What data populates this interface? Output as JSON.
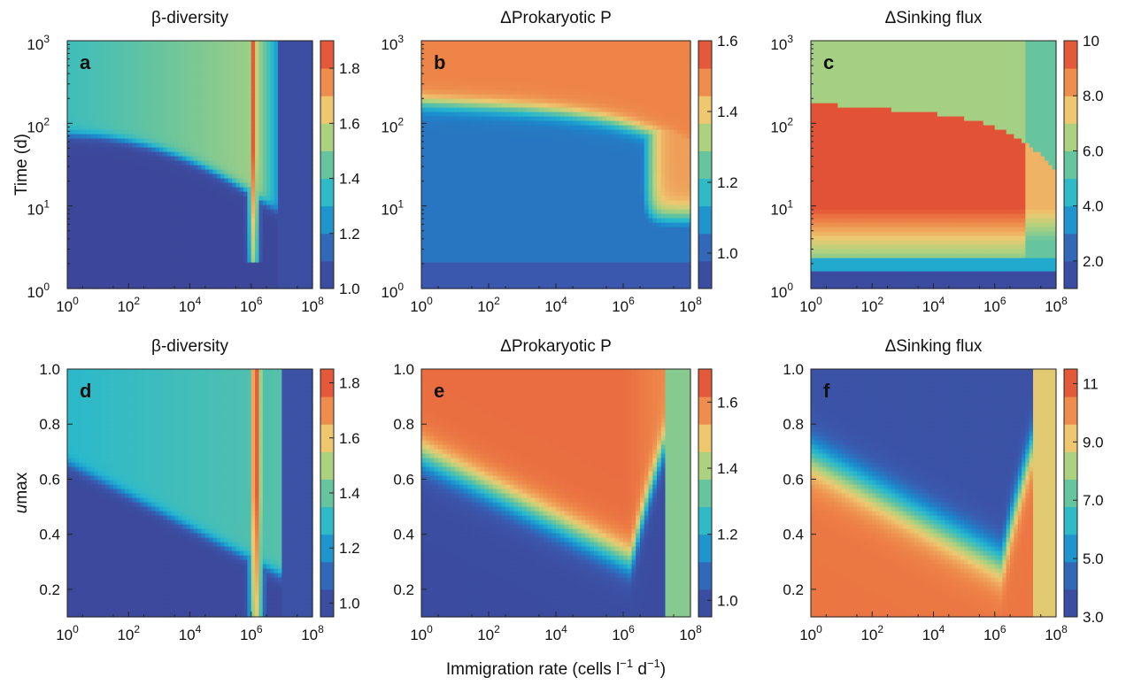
{
  "figure": {
    "shared_xlabel": {
      "pre": "Immigration rate (cells l",
      "mid": " d",
      "post": ")",
      "sup": "−1"
    },
    "row1_ylabel": "Time (d)",
    "row2_ylabel": {
      "u": "u",
      "rest": "max"
    }
  },
  "chart_data": [
    {
      "id": "a",
      "type": "heatmap",
      "title": "β-diversity",
      "letter": "a",
      "x_scale": "log",
      "x_range": [
        1,
        100000000
      ],
      "x_ticks": [
        {
          "b": "10",
          "e": "0"
        },
        {
          "b": "10",
          "e": "2"
        },
        {
          "b": "10",
          "e": "4"
        },
        {
          "b": "10",
          "e": "6"
        },
        {
          "b": "10",
          "e": "8"
        }
      ],
      "y_scale": "log",
      "y_range": [
        1,
        1000
      ],
      "y_ticks": [
        {
          "b": "10",
          "e": "0"
        },
        {
          "b": "10",
          "e": "1"
        },
        {
          "b": "10",
          "e": "2"
        },
        {
          "b": "10",
          "e": "3"
        }
      ],
      "colorbar": {
        "range": [
          1.0,
          1.9
        ],
        "ticks": [
          "1.0",
          "1.2",
          "1.4",
          "1.6",
          "1.8"
        ],
        "tick_values": [
          1.0,
          1.2,
          1.4,
          1.6,
          1.8
        ]
      },
      "regions": [
        {
          "region": "below threshold curve (time < ~150 d decreasing to ~10 d at 10^6)",
          "value": 1.0
        },
        {
          "region": "above threshold, low immigration",
          "value": 1.45
        },
        {
          "region": "ridge at ~10^6 cells l-1 d-1, upper times",
          "value": 1.8
        },
        {
          "region": "immigration > 10^7",
          "value": 1.05
        }
      ]
    },
    {
      "id": "b",
      "type": "heatmap",
      "title": "ΔProkaryotic P",
      "letter": "b",
      "x_scale": "log",
      "x_range": [
        1,
        100000000
      ],
      "x_ticks": [
        {
          "b": "10",
          "e": "0"
        },
        {
          "b": "10",
          "e": "2"
        },
        {
          "b": "10",
          "e": "4"
        },
        {
          "b": "10",
          "e": "6"
        },
        {
          "b": "10",
          "e": "8"
        }
      ],
      "y_scale": "log",
      "y_range": [
        1,
        1000
      ],
      "y_ticks": [
        {
          "b": "10",
          "e": "0"
        },
        {
          "b": "10",
          "e": "1"
        },
        {
          "b": "10",
          "e": "2"
        },
        {
          "b": "10",
          "e": "3"
        }
      ],
      "colorbar": {
        "range": [
          0.9,
          1.6
        ],
        "ticks": [
          "1.0",
          "1.2",
          "1.4",
          "1.6"
        ],
        "tick_values": [
          1.0,
          1.2,
          1.4,
          1.6
        ]
      },
      "regions": [
        {
          "region": "time > ~150 d",
          "value": 1.55
        },
        {
          "region": "time < ~150 d, low immigration",
          "value": 1.08
        },
        {
          "region": "high immigration > 10^7, time > ~10 d",
          "value": 1.5
        },
        {
          "region": "short times, high immigration",
          "value": 1.0
        }
      ]
    },
    {
      "id": "c",
      "type": "heatmap",
      "title": "ΔSinking flux",
      "letter": "c",
      "x_scale": "log",
      "x_range": [
        1,
        100000000
      ],
      "x_ticks": [
        {
          "b": "10",
          "e": "0"
        },
        {
          "b": "10",
          "e": "2"
        },
        {
          "b": "10",
          "e": "4"
        },
        {
          "b": "10",
          "e": "6"
        },
        {
          "b": "10",
          "e": "8"
        }
      ],
      "y_scale": "log",
      "y_range": [
        1,
        1000
      ],
      "y_ticks": [
        {
          "b": "10",
          "e": "0"
        },
        {
          "b": "10",
          "e": "1"
        },
        {
          "b": "10",
          "e": "2"
        },
        {
          "b": "10",
          "e": "3"
        }
      ],
      "colorbar": {
        "range": [
          1.0,
          10.0
        ],
        "ticks": [
          "2.0",
          "4.0",
          "6.0",
          "8.0",
          "10"
        ],
        "tick_values": [
          2.0,
          4.0,
          6.0,
          8.0,
          10.0
        ]
      },
      "regions": [
        {
          "region": "time > ~150 d",
          "value": 6.5
        },
        {
          "region": "~10 d to ~150 d",
          "value": 9.8
        },
        {
          "region": "~2 d to ~10 d",
          "value": 5.0
        },
        {
          "region": "time < 2 d",
          "value": 1.2
        }
      ]
    },
    {
      "id": "d",
      "type": "heatmap",
      "title": "β-diversity",
      "letter": "d",
      "x_scale": "log",
      "x_range": [
        1,
        100000000
      ],
      "x_ticks": [
        {
          "b": "10",
          "e": "0"
        },
        {
          "b": "10",
          "e": "2"
        },
        {
          "b": "10",
          "e": "4"
        },
        {
          "b": "10",
          "e": "6"
        },
        {
          "b": "10",
          "e": "8"
        }
      ],
      "y_scale": "linear",
      "y_range": [
        0.1,
        1.0
      ],
      "y_ticks": [
        "0.2",
        "0.4",
        "0.6",
        "0.8",
        "1.0"
      ],
      "colorbar": {
        "range": [
          0.95,
          1.85
        ],
        "ticks": [
          "1.0",
          "1.2",
          "1.4",
          "1.6",
          "1.8"
        ],
        "tick_values": [
          1.0,
          1.2,
          1.4,
          1.6,
          1.8
        ]
      },
      "regions": [
        {
          "region": "below diagonal threshold",
          "value": 1.0
        },
        {
          "region": "above threshold, low immigration",
          "value": 1.4
        },
        {
          "region": "ridge at ~10^6",
          "value": 1.8
        },
        {
          "region": "immigration > 10^7",
          "value": 1.05
        }
      ]
    },
    {
      "id": "e",
      "type": "heatmap",
      "title": "ΔProkaryotic P",
      "letter": "e",
      "x_scale": "log",
      "x_range": [
        1,
        100000000
      ],
      "x_ticks": [
        {
          "b": "10",
          "e": "0"
        },
        {
          "b": "10",
          "e": "2"
        },
        {
          "b": "10",
          "e": "4"
        },
        {
          "b": "10",
          "e": "6"
        },
        {
          "b": "10",
          "e": "8"
        }
      ],
      "y_scale": "linear",
      "y_range": [
        0.1,
        1.0
      ],
      "y_ticks": [
        "0.2",
        "0.4",
        "0.6",
        "0.8",
        "1.0"
      ],
      "colorbar": {
        "range": [
          0.95,
          1.7
        ],
        "ticks": [
          "1.0",
          "1.2",
          "1.4",
          "1.6"
        ],
        "tick_values": [
          1.0,
          1.2,
          1.4,
          1.6
        ]
      },
      "regions": [
        {
          "region": "above diagonal threshold",
          "value": 1.6
        },
        {
          "region": "below diagonal threshold",
          "value": 1.0
        },
        {
          "region": "high immigration > 10^7",
          "value": 1.4
        }
      ]
    },
    {
      "id": "f",
      "type": "heatmap",
      "title": "ΔSinking flux",
      "letter": "f",
      "x_scale": "log",
      "x_range": [
        1,
        100000000
      ],
      "x_ticks": [
        {
          "b": "10",
          "e": "0"
        },
        {
          "b": "10",
          "e": "2"
        },
        {
          "b": "10",
          "e": "4"
        },
        {
          "b": "10",
          "e": "6"
        },
        {
          "b": "10",
          "e": "8"
        }
      ],
      "y_scale": "linear",
      "y_range": [
        0.1,
        1.0
      ],
      "y_ticks": [
        "0.2",
        "0.4",
        "0.6",
        "0.8",
        "1.0"
      ],
      "colorbar": {
        "range": [
          3.0,
          11.5
        ],
        "ticks": [
          "3.0",
          "5.0",
          "7.0",
          "9.0",
          "11"
        ],
        "tick_values": [
          3.0,
          5.0,
          7.0,
          9.0,
          11.0
        ]
      },
      "regions": [
        {
          "region": "above diagonal threshold",
          "value": 3.5
        },
        {
          "region": "below diagonal threshold",
          "value": 9.8
        },
        {
          "region": "high immigration > 10^7",
          "value": 8.0
        }
      ]
    }
  ]
}
